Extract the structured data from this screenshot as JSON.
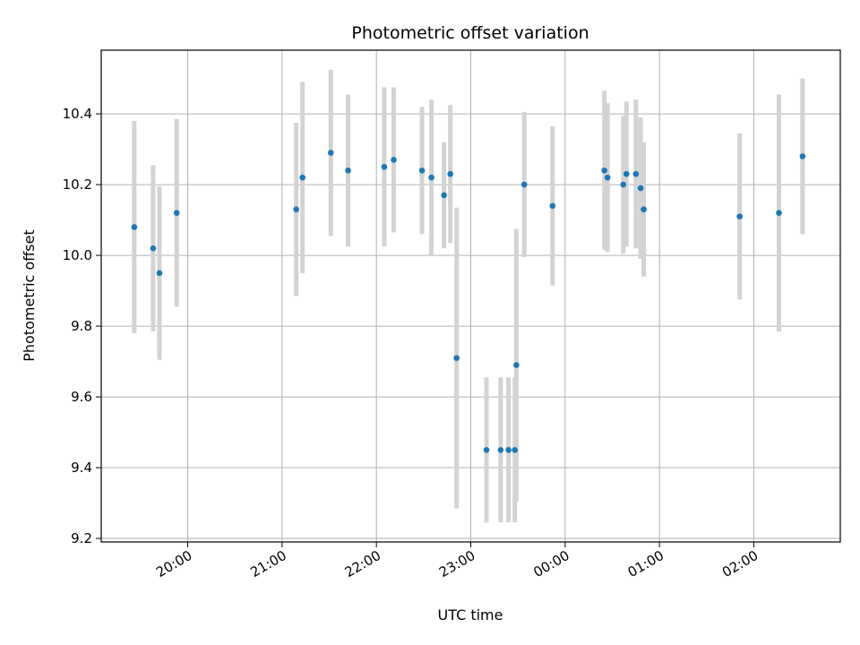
{
  "chart_data": {
    "type": "scatter",
    "title": "Photometric offset variation",
    "xlabel": "UTC time",
    "ylabel": "Photometric offset",
    "x_axis_kind": "time",
    "xlim": [
      "19:05",
      "02:55"
    ],
    "ylim": [
      9.19,
      10.58
    ],
    "xticks": [
      {
        "time": "20:00",
        "label": "20:00"
      },
      {
        "time": "21:00",
        "label": "21:00"
      },
      {
        "time": "22:00",
        "label": "22:00"
      },
      {
        "time": "23:00",
        "label": "23:00"
      },
      {
        "time": "00:00",
        "label": "00:00"
      },
      {
        "time": "01:00",
        "label": "01:00"
      },
      {
        "time": "02:00",
        "label": "02:00"
      }
    ],
    "yticks": [
      {
        "value": 9.2,
        "label": "9.2"
      },
      {
        "value": 9.4,
        "label": "9.4"
      },
      {
        "value": 9.6,
        "label": "9.6"
      },
      {
        "value": 9.8,
        "label": "9.8"
      },
      {
        "value": 10.0,
        "label": "10.0"
      },
      {
        "value": 10.2,
        "label": "10.2"
      },
      {
        "value": 10.4,
        "label": "10.4"
      }
    ],
    "grid": true,
    "colors": {
      "points": "#1f77b4",
      "errorbars": "#d3d3d3",
      "grid": "#b0b0b0",
      "axes": "#000000"
    },
    "series": [
      {
        "points": [
          {
            "x": "19:26",
            "y": 10.08,
            "err": 0.3
          },
          {
            "x": "19:38",
            "y": 10.02,
            "err": 0.235
          },
          {
            "x": "19:42",
            "y": 9.95,
            "err": 0.245
          },
          {
            "x": "19:53",
            "y": 10.12,
            "err": 0.265
          },
          {
            "x": "21:09",
            "y": 10.13,
            "err": 0.245
          },
          {
            "x": "21:13",
            "y": 10.22,
            "err": 0.27
          },
          {
            "x": "21:31",
            "y": 10.29,
            "err": 0.235
          },
          {
            "x": "21:42",
            "y": 10.24,
            "err": 0.215
          },
          {
            "x": "22:05",
            "y": 10.25,
            "err": 0.225
          },
          {
            "x": "22:11",
            "y": 10.27,
            "err": 0.205
          },
          {
            "x": "22:29",
            "y": 10.24,
            "err": 0.18
          },
          {
            "x": "22:35",
            "y": 10.22,
            "err": 0.22
          },
          {
            "x": "22:43",
            "y": 10.17,
            "err": 0.15
          },
          {
            "x": "22:47",
            "y": 10.23,
            "err": 0.195
          },
          {
            "x": "22:51",
            "y": 9.71,
            "err": 0.425
          },
          {
            "x": "23:10",
            "y": 9.45,
            "err": 0.205
          },
          {
            "x": "23:19",
            "y": 9.45,
            "err": 0.205
          },
          {
            "x": "23:24",
            "y": 9.45,
            "err": 0.205
          },
          {
            "x": "23:28",
            "y": 9.45,
            "err": 0.205
          },
          {
            "x": "23:29",
            "y": 9.69,
            "err": 0.385
          },
          {
            "x": "23:34",
            "y": 10.2,
            "err": 0.205
          },
          {
            "x": "23:52",
            "y": 10.14,
            "err": 0.225
          },
          {
            "x": "00:25",
            "y": 10.24,
            "err": 0.225
          },
          {
            "x": "00:27",
            "y": 10.22,
            "err": 0.21
          },
          {
            "x": "00:37",
            "y": 10.2,
            "err": 0.195
          },
          {
            "x": "00:39",
            "y": 10.23,
            "err": 0.205
          },
          {
            "x": "00:45",
            "y": 10.23,
            "err": 0.21
          },
          {
            "x": "00:48",
            "y": 10.19,
            "err": 0.2
          },
          {
            "x": "00:50",
            "y": 10.13,
            "err": 0.19
          },
          {
            "x": "01:51",
            "y": 10.11,
            "err": 0.235
          },
          {
            "x": "02:16",
            "y": 10.12,
            "err": 0.335
          },
          {
            "x": "02:31",
            "y": 10.28,
            "err": 0.22
          }
        ]
      }
    ]
  }
}
